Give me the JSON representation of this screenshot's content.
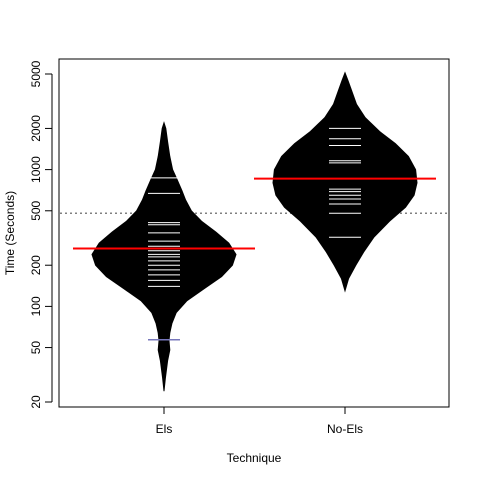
{
  "chart_data": {
    "type": "beanplot",
    "xlabel": "Technique",
    "ylabel": "Time (Seconds)",
    "ylim": [
      19,
      6000
    ],
    "y_scale": "log",
    "y_ticks": [
      20,
      50,
      100,
      200,
      500,
      1000,
      2000,
      5000
    ],
    "y_tick_labels": [
      "20",
      "50",
      "100",
      "200",
      "500",
      "1000",
      "2000",
      "5000"
    ],
    "categories": [
      "Els",
      "No-Els"
    ],
    "overall_mean": 480,
    "overall_mean_color": "#808080",
    "bean_color": "#000000",
    "observation_line_color": "#ffffff",
    "mean_line_color": "#ff0000",
    "outlier_color": "#7777bb",
    "series": [
      {
        "group": "Els",
        "mean": 265,
        "observations": [
          140,
          155,
          170,
          185,
          200,
          215,
          230,
          240,
          255,
          265,
          275,
          300,
          345,
          395,
          410,
          670,
          870
        ],
        "outliers": [
          57
        ],
        "density": [
          [
            24,
            0.0
          ],
          [
            30,
            0.02
          ],
          [
            40,
            0.05
          ],
          [
            48,
            0.08
          ],
          [
            56,
            0.07
          ],
          [
            64,
            0.08
          ],
          [
            75,
            0.11
          ],
          [
            90,
            0.17
          ],
          [
            110,
            0.32
          ],
          [
            135,
            0.56
          ],
          [
            165,
            0.8
          ],
          [
            200,
            0.95
          ],
          [
            240,
            1.0
          ],
          [
            290,
            0.9
          ],
          [
            350,
            0.72
          ],
          [
            420,
            0.52
          ],
          [
            500,
            0.38
          ],
          [
            600,
            0.3
          ],
          [
            700,
            0.25
          ],
          [
            850,
            0.18
          ],
          [
            1000,
            0.12
          ],
          [
            1250,
            0.08
          ],
          [
            1600,
            0.05
          ],
          [
            2000,
            0.025
          ],
          [
            2200,
            0.0
          ]
        ]
      },
      {
        "group": "No-Els",
        "mean": 860,
        "observations": [
          320,
          480,
          560,
          610,
          650,
          690,
          720,
          1120,
          1160,
          1500,
          1680,
          2000
        ],
        "outliers": [],
        "density": [
          [
            130,
            0.0
          ],
          [
            160,
            0.05
          ],
          [
            200,
            0.15
          ],
          [
            250,
            0.26
          ],
          [
            320,
            0.4
          ],
          [
            420,
            0.62
          ],
          [
            530,
            0.84
          ],
          [
            650,
            0.96
          ],
          [
            800,
            1.0
          ],
          [
            1000,
            0.98
          ],
          [
            1250,
            0.88
          ],
          [
            1550,
            0.7
          ],
          [
            1900,
            0.48
          ],
          [
            2400,
            0.28
          ],
          [
            3000,
            0.16
          ],
          [
            3800,
            0.09
          ],
          [
            4500,
            0.04
          ],
          [
            5100,
            0.0
          ]
        ]
      }
    ]
  }
}
